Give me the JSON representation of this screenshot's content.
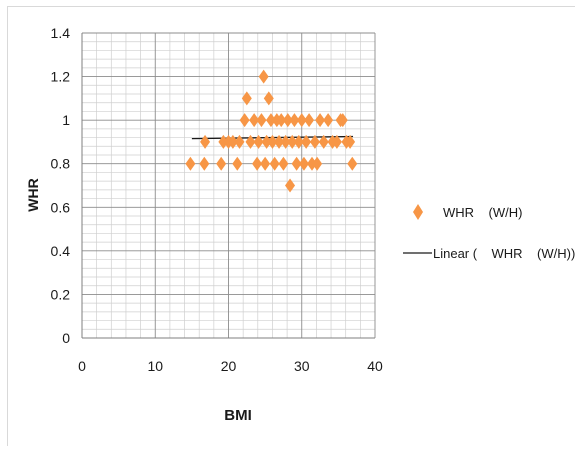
{
  "chart_data": {
    "type": "scatter",
    "title": "",
    "xlabel": "BMI",
    "ylabel": "WHR",
    "xlim": [
      0,
      40
    ],
    "ylim": [
      0,
      1.4
    ],
    "x_ticks": [
      "0",
      "10",
      "20",
      "30",
      "40"
    ],
    "y_ticks": [
      "0",
      "0.2",
      "0.4",
      "0.6",
      "0.8",
      "1",
      "1.2",
      "1.4"
    ],
    "grid": true,
    "legend_position": "right",
    "series": [
      {
        "name": "WHR    (W/H)",
        "marker": "diamond",
        "color": "#f79646",
        "points": [
          [
            14.8,
            0.8
          ],
          [
            16.7,
            0.8
          ],
          [
            16.8,
            0.9
          ],
          [
            19.0,
            0.8
          ],
          [
            19.3,
            0.9
          ],
          [
            20.0,
            0.9
          ],
          [
            20.6,
            0.9
          ],
          [
            21.2,
            0.8
          ],
          [
            21.5,
            0.9
          ],
          [
            22.2,
            1.0
          ],
          [
            22.5,
            1.1
          ],
          [
            23.0,
            0.9
          ],
          [
            23.5,
            1.0
          ],
          [
            23.9,
            0.8
          ],
          [
            24.1,
            0.9
          ],
          [
            24.5,
            1.0
          ],
          [
            24.8,
            1.2
          ],
          [
            25.0,
            0.8
          ],
          [
            25.2,
            0.9
          ],
          [
            25.5,
            1.1
          ],
          [
            25.8,
            1.0
          ],
          [
            26.0,
            0.9
          ],
          [
            26.3,
            0.8
          ],
          [
            26.6,
            1.0
          ],
          [
            26.9,
            0.9
          ],
          [
            27.2,
            1.0
          ],
          [
            27.5,
            0.8
          ],
          [
            27.8,
            0.9
          ],
          [
            28.1,
            1.0
          ],
          [
            28.4,
            0.7
          ],
          [
            28.7,
            0.9
          ],
          [
            29.0,
            1.0
          ],
          [
            29.3,
            0.8
          ],
          [
            29.6,
            0.9
          ],
          [
            30.0,
            1.0
          ],
          [
            30.3,
            0.8
          ],
          [
            30.6,
            0.9
          ],
          [
            31.0,
            1.0
          ],
          [
            31.4,
            0.8
          ],
          [
            31.8,
            0.9
          ],
          [
            32.1,
            0.8
          ],
          [
            32.5,
            1.0
          ],
          [
            33.0,
            0.9
          ],
          [
            33.6,
            1.0
          ],
          [
            34.2,
            0.9
          ],
          [
            34.8,
            0.9
          ],
          [
            35.3,
            1.0
          ],
          [
            35.6,
            1.0
          ],
          [
            36.1,
            0.9
          ],
          [
            36.6,
            0.9
          ],
          [
            36.9,
            0.8
          ]
        ]
      },
      {
        "name": "Linear (    WHR    (W/H))",
        "type": "trendline",
        "color": "#1a1a1a",
        "points": [
          [
            15,
            0.915
          ],
          [
            37,
            0.925
          ]
        ]
      }
    ]
  }
}
